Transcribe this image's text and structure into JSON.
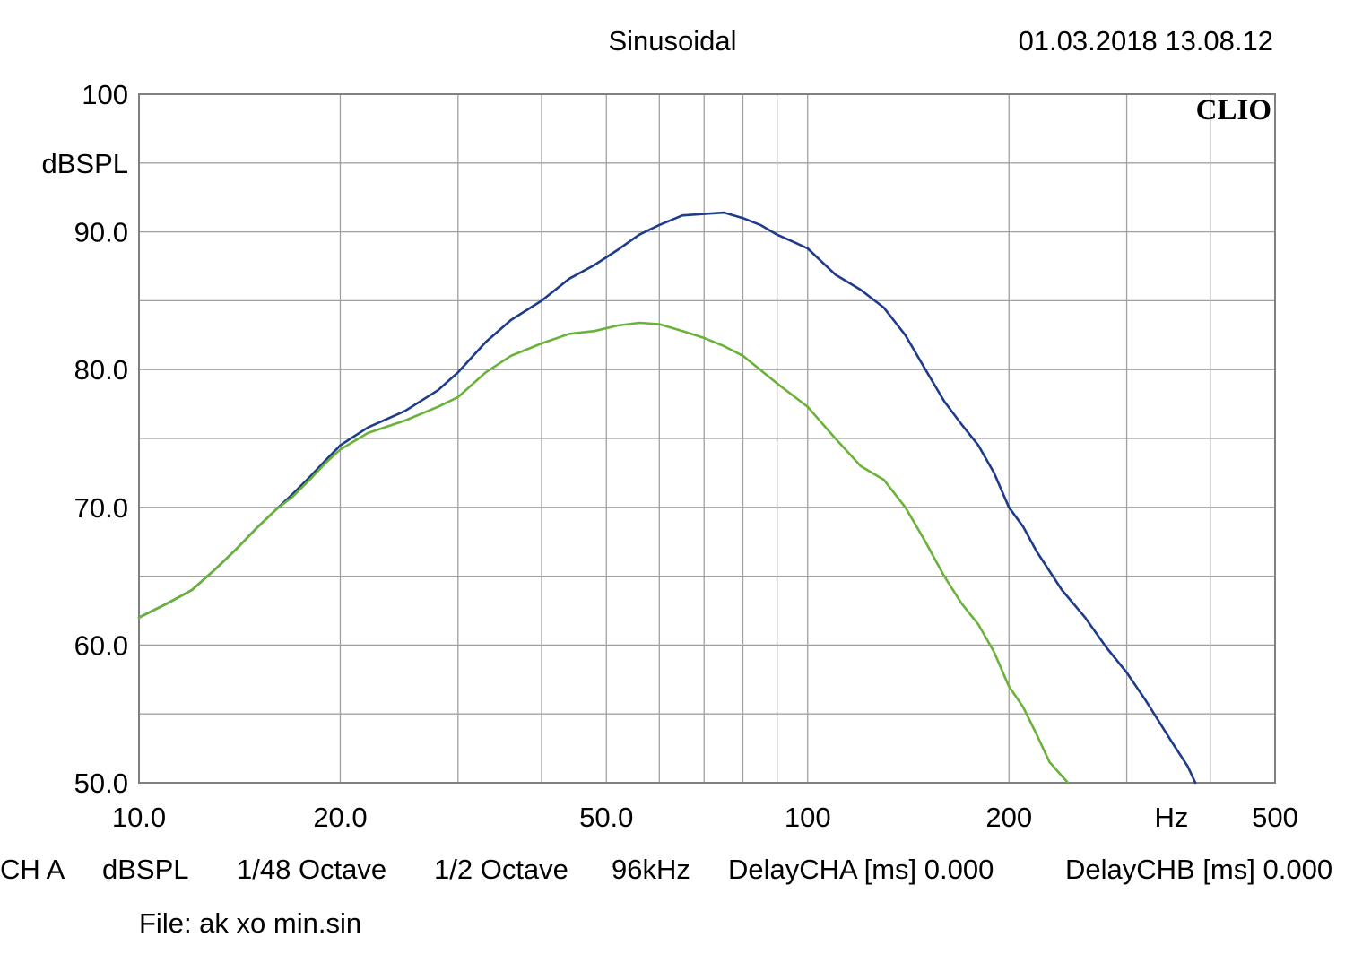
{
  "header": {
    "mode": "Sinusoidal",
    "timestamp": "01.03.2018 13.08.12",
    "brand": "CLIO"
  },
  "chart_data": {
    "type": "line",
    "xscale": "log",
    "xlim": [
      10,
      500
    ],
    "ylim": [
      50,
      100
    ],
    "ylabel": "dBSPL",
    "xlabel": "Hz",
    "grid": true,
    "x_ticks": [
      {
        "value": 10,
        "label": "10.0"
      },
      {
        "value": 20,
        "label": "20.0"
      },
      {
        "value": 50,
        "label": "50.0"
      },
      {
        "value": 100,
        "label": "100"
      },
      {
        "value": 200,
        "label": "200"
      },
      {
        "value": 500,
        "label": "500"
      }
    ],
    "x_unit_tick": {
      "value": 350,
      "label": "Hz"
    },
    "y_ticks": [
      {
        "value": 100,
        "label": "100"
      },
      {
        "value": 90,
        "label": "90.0"
      },
      {
        "value": 80,
        "label": "80.0"
      },
      {
        "value": 70,
        "label": "70.0"
      },
      {
        "value": 60,
        "label": "60.0"
      },
      {
        "value": 50,
        "label": "50.0"
      }
    ],
    "y_unit_tick": {
      "value": 95,
      "label": "dBSPL"
    },
    "x_grid": [
      10,
      20,
      30,
      40,
      50,
      60,
      70,
      80,
      90,
      100,
      200,
      300,
      400,
      500
    ],
    "y_grid": [
      50,
      55,
      60,
      65,
      70,
      75,
      80,
      85,
      90,
      95,
      100
    ],
    "series": [
      {
        "color": "#1f3c8c",
        "points": [
          [
            10,
            62.0
          ],
          [
            11,
            63.0
          ],
          [
            12,
            64.0
          ],
          [
            13,
            65.5
          ],
          [
            14,
            67.0
          ],
          [
            15,
            68.5
          ],
          [
            16,
            69.8
          ],
          [
            17,
            71.0
          ],
          [
            18,
            72.2
          ],
          [
            19,
            73.4
          ],
          [
            20,
            74.5
          ],
          [
            22,
            75.8
          ],
          [
            25,
            77.0
          ],
          [
            28,
            78.5
          ],
          [
            30,
            79.8
          ],
          [
            33,
            82.0
          ],
          [
            36,
            83.6
          ],
          [
            40,
            85.0
          ],
          [
            44,
            86.6
          ],
          [
            48,
            87.6
          ],
          [
            52,
            88.7
          ],
          [
            56,
            89.8
          ],
          [
            60,
            90.5
          ],
          [
            65,
            91.2
          ],
          [
            70,
            91.3
          ],
          [
            75,
            91.4
          ],
          [
            80,
            91.0
          ],
          [
            85,
            90.5
          ],
          [
            90,
            89.8
          ],
          [
            95,
            89.3
          ],
          [
            100,
            88.8
          ],
          [
            110,
            86.9
          ],
          [
            120,
            85.8
          ],
          [
            130,
            84.5
          ],
          [
            140,
            82.5
          ],
          [
            150,
            80.0
          ],
          [
            160,
            77.7
          ],
          [
            170,
            76.0
          ],
          [
            180,
            74.5
          ],
          [
            190,
            72.5
          ],
          [
            200,
            70.0
          ],
          [
            210,
            68.6
          ],
          [
            220,
            66.8
          ],
          [
            240,
            64.0
          ],
          [
            260,
            62.0
          ],
          [
            280,
            59.8
          ],
          [
            300,
            58.0
          ],
          [
            320,
            56.0
          ],
          [
            350,
            53.0
          ],
          [
            370,
            51.2
          ],
          [
            380,
            50.0
          ]
        ]
      },
      {
        "color": "#6ab23a",
        "points": [
          [
            10,
            62.0
          ],
          [
            11,
            63.0
          ],
          [
            12,
            64.0
          ],
          [
            13,
            65.5
          ],
          [
            14,
            67.0
          ],
          [
            15,
            68.5
          ],
          [
            16,
            69.8
          ],
          [
            17,
            70.8
          ],
          [
            18,
            72.0
          ],
          [
            19,
            73.2
          ],
          [
            20,
            74.2
          ],
          [
            22,
            75.4
          ],
          [
            25,
            76.3
          ],
          [
            28,
            77.3
          ],
          [
            30,
            78.0
          ],
          [
            33,
            79.8
          ],
          [
            36,
            81.0
          ],
          [
            40,
            81.9
          ],
          [
            44,
            82.6
          ],
          [
            48,
            82.8
          ],
          [
            52,
            83.2
          ],
          [
            56,
            83.4
          ],
          [
            60,
            83.3
          ],
          [
            65,
            82.8
          ],
          [
            70,
            82.3
          ],
          [
            75,
            81.7
          ],
          [
            80,
            81.0
          ],
          [
            90,
            79.0
          ],
          [
            100,
            77.3
          ],
          [
            110,
            75.0
          ],
          [
            120,
            73.0
          ],
          [
            130,
            72.0
          ],
          [
            140,
            70.0
          ],
          [
            150,
            67.5
          ],
          [
            160,
            65.0
          ],
          [
            170,
            63.0
          ],
          [
            180,
            61.5
          ],
          [
            190,
            59.5
          ],
          [
            200,
            57.0
          ],
          [
            210,
            55.5
          ],
          [
            220,
            53.5
          ],
          [
            230,
            51.5
          ],
          [
            245,
            50.0
          ]
        ]
      }
    ]
  },
  "footer": {
    "channel": "CH A",
    "unit": "dBSPL",
    "resolution": "1/48 Octave",
    "smoothing": "1/2 Octave",
    "sample_rate": "96kHz",
    "delay_a": "DelayCHA [ms] 0.000",
    "delay_b": "DelayCHB [ms] 0.000",
    "file": "File: ak xo min.sin"
  }
}
